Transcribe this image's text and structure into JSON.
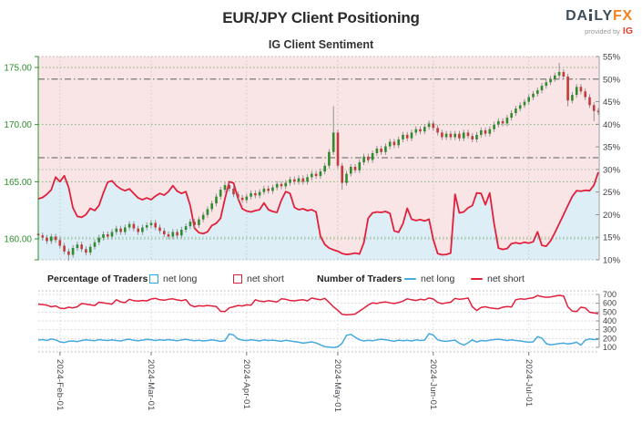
{
  "header": {
    "title": "EUR/JPY Client Positioning",
    "subtitle": "IG Client Sentiment",
    "logo": {
      "da": "DA",
      "ly": "LY",
      "fx": "FX",
      "provided_by": "provided by",
      "ig": "IG"
    }
  },
  "legend": {
    "pct_header": "Percentage of Traders",
    "pct_long": "net long",
    "pct_short": "net short",
    "num_header": "Number of Traders",
    "num_long": "net long",
    "num_short": "net short"
  },
  "colors": {
    "net_short_line": "#e1203c",
    "net_long_line": "#45a9e0",
    "legend_long_swatch": "#29a8e0",
    "legend_short_swatch": "#e1203c",
    "candle_up": "#2e8b2e",
    "candle_down": "#c43b3b",
    "wick": "#878787",
    "fill_above_short": "#f9e5e5",
    "fill_below_short": "#ddeef7",
    "price_axis": "#2d8f2d",
    "pct_axis": "#3f3f46",
    "grid_green": "#63a563",
    "grid_month": "#c6cdc6",
    "ref_line": "#7a7a7a",
    "logo_dark": "#3d4d5c",
    "logo_orange": "#f5821f",
    "ig_red": "#e8402a"
  },
  "chart_data": [
    {
      "type": "candlestick+line",
      "title": "EUR/JPY price (candles) with IG client net-short percentage (red line)",
      "price_axis": {
        "tick_labels": [
          "175.00",
          "170.00",
          "165.00",
          "160.00"
        ],
        "values": [
          175,
          170,
          165,
          160
        ],
        "range": [
          158.2,
          176.0
        ]
      },
      "pct_axis": {
        "tick_labels": [
          "55%",
          "50%",
          "45%",
          "40%",
          "35%",
          "30%",
          "25%",
          "20%",
          "15%",
          "10%"
        ],
        "values": [
          55,
          50,
          45,
          40,
          35,
          30,
          25,
          20,
          15,
          10
        ],
        "range": [
          10,
          55
        ]
      },
      "months": [
        "2024-Feb-01",
        "2024-Mar-01",
        "2024-Apr-01",
        "2024-May-01",
        "2024-Jun-01",
        "2024-Jul-01"
      ],
      "month_start_index": [
        5,
        26,
        48,
        69,
        91,
        113
      ],
      "pct_gridlines": [
        30,
        15
      ],
      "reference_pct_lines": [
        50,
        32.6
      ],
      "first_open": 160.45,
      "closes": [
        160.3,
        160.1,
        159.8,
        160.2,
        159.9,
        159.4,
        158.9,
        158.6,
        159.2,
        159.5,
        159.1,
        158.8,
        159.3,
        159.7,
        160.1,
        160.4,
        160.2,
        160.6,
        160.9,
        160.6,
        161.0,
        161.3,
        160.9,
        160.6,
        161.0,
        161.2,
        161.4,
        161.0,
        160.7,
        160.4,
        160.2,
        160.6,
        160.3,
        160.8,
        161.1,
        161.5,
        161.2,
        161.7,
        162.1,
        162.6,
        163.1,
        163.7,
        164.3,
        164.7,
        164.4,
        163.9,
        163.6,
        163.4,
        163.7,
        164.0,
        163.8,
        164.1,
        164.4,
        164.2,
        164.5,
        164.8,
        164.6,
        164.9,
        165.2,
        165.0,
        165.3,
        165.0,
        165.4,
        165.7,
        165.5,
        165.9,
        166.4,
        167.6,
        169.3,
        166.4,
        164.9,
        165.7,
        166.3,
        166.0,
        166.7,
        167.2,
        166.9,
        167.5,
        167.9,
        167.6,
        168.1,
        168.5,
        168.2,
        168.7,
        169.1,
        168.8,
        169.3,
        169.6,
        169.4,
        169.8,
        170.1,
        169.7,
        169.3,
        168.9,
        169.2,
        168.9,
        169.2,
        168.8,
        169.3,
        169.0,
        168.7,
        169.1,
        169.5,
        169.2,
        169.6,
        170.0,
        170.3,
        170.1,
        170.6,
        171.0,
        171.4,
        171.7,
        172.0,
        172.4,
        172.7,
        173.0,
        173.4,
        173.7,
        174.0,
        174.3,
        174.6,
        174.2,
        172.1,
        172.6,
        173.3,
        172.9,
        172.4,
        171.7,
        171.2,
        171.1
      ],
      "wick_overrides": {
        "7": {
          "l": 158.1
        },
        "68": {
          "h": 171.6
        },
        "70": {
          "l": 164.3
        },
        "120": {
          "h": 175.4
        },
        "122": {
          "l": 171.6
        },
        "128": {
          "l": 170.3
        }
      },
      "net_short_pct": [
        23.5,
        23.8,
        24.5,
        25.5,
        28.3,
        27.3,
        28.6,
        26.0,
        21.5,
        19.6,
        19.4,
        20.0,
        21.4,
        20.9,
        22.0,
        24.8,
        27.2,
        27.5,
        26.4,
        25.7,
        25.3,
        25.7,
        24.7,
        23.7,
        23.3,
        23.7,
        23.3,
        24.1,
        24.7,
        24.3,
        25.1,
        26.4,
        25.2,
        24.7,
        25.1,
        22.0,
        17.0,
        16.0,
        15.8,
        16.2,
        17.6,
        18.1,
        19.2,
        23.5,
        27.3,
        27.0,
        23.6,
        21.3,
        20.8,
        20.6,
        20.9,
        21.1,
        22.6,
        21.1,
        20.7,
        20.5,
        23.2,
        25.1,
        24.7,
        21.6,
        21.1,
        21.3,
        20.9,
        21.1,
        20.6,
        15.2,
        13.4,
        12.6,
        12.2,
        11.9,
        11.4,
        11.2,
        11.3,
        11.5,
        11.3,
        13.8,
        19.2,
        20.4,
        20.6,
        20.5,
        20.7,
        20.3,
        16.4,
        16.1,
        18.0,
        21.4,
        19.0,
        18.7,
        18.9,
        18.6,
        19.0,
        14.5,
        11.4,
        11.1,
        11.2,
        11.5,
        24.5,
        20.4,
        20.6,
        21.5,
        22.0,
        24.8,
        24.7,
        22.2,
        24.8,
        18.0,
        12.6,
        12.3,
        12.5,
        13.6,
        13.8,
        13.6,
        13.9,
        13.7,
        14.0,
        16.2,
        13.2,
        13.0,
        14.2,
        16.0,
        18.0,
        20.0,
        22.0,
        24.0,
        25.3,
        25.2,
        25.4,
        25.3,
        26.5,
        29.4
      ]
    },
    {
      "type": "line",
      "title": "Number of traders",
      "y_axis": {
        "tick_labels": [
          "700",
          "600",
          "500",
          "400",
          "300",
          "200",
          "100"
        ],
        "values": [
          700,
          600,
          500,
          400,
          300,
          200,
          100
        ]
      },
      "series": [
        {
          "name": "net short",
          "values": [
            590,
            585,
            578,
            560,
            570,
            545,
            540,
            555,
            548,
            560,
            598,
            590,
            582,
            575,
            612,
            605,
            598,
            590,
            640,
            615,
            608,
            645,
            630,
            625,
            632,
            628,
            648,
            655,
            640,
            635,
            645,
            650,
            638,
            630,
            642,
            580,
            560,
            572,
            568,
            575,
            570,
            562,
            510,
            505,
            548,
            560,
            575,
            570,
            582,
            578,
            640,
            625,
            618,
            630,
            622,
            615,
            650,
            645,
            632,
            628,
            635,
            640,
            628,
            660,
            648,
            640,
            655,
            610,
            560,
            520,
            475,
            468,
            472,
            478,
            512,
            545,
            580,
            605,
            598,
            610,
            615,
            605,
            598,
            608,
            625,
            650,
            640,
            632,
            645,
            638,
            660,
            648,
            610,
            595,
            605,
            612,
            655,
            645,
            650,
            660,
            560,
            518,
            552,
            560,
            548,
            542,
            538,
            555,
            562,
            558,
            640,
            650,
            645,
            655,
            662,
            688,
            675,
            668,
            672,
            680,
            690,
            682,
            560,
            512,
            505,
            555,
            548,
            498,
            490,
            482
          ]
        },
        {
          "name": "net long",
          "values": [
            182,
            188,
            178,
            195,
            185,
            162,
            155,
            168,
            172,
            165,
            178,
            185,
            180,
            175,
            188,
            182,
            178,
            185,
            178,
            172,
            185,
            192,
            180,
            175,
            182,
            190,
            185,
            178,
            185,
            180,
            188,
            182,
            175,
            185,
            190,
            182,
            175,
            180,
            172,
            178,
            185,
            178,
            168,
            175,
            252,
            240,
            195,
            182,
            178,
            185,
            180,
            172,
            185,
            178,
            182,
            175,
            168,
            180,
            172,
            165,
            158,
            148,
            155,
            162,
            150,
            128,
            108,
            102,
            98,
            105,
            148,
            235,
            248,
            215,
            185,
            172,
            180,
            175,
            185,
            192,
            185,
            178,
            168,
            182,
            175,
            180,
            172,
            185,
            178,
            182,
            255,
            240,
            185,
            172,
            168,
            175,
            182,
            148,
            125,
            152,
            185,
            160,
            178,
            172,
            182,
            188,
            192,
            185,
            178,
            185,
            178,
            172,
            165,
            158,
            162,
            222,
            205,
            142,
            128,
            135,
            142,
            148,
            138,
            145,
            158,
            125,
            182,
            195,
            188,
            192
          ]
        }
      ]
    }
  ]
}
